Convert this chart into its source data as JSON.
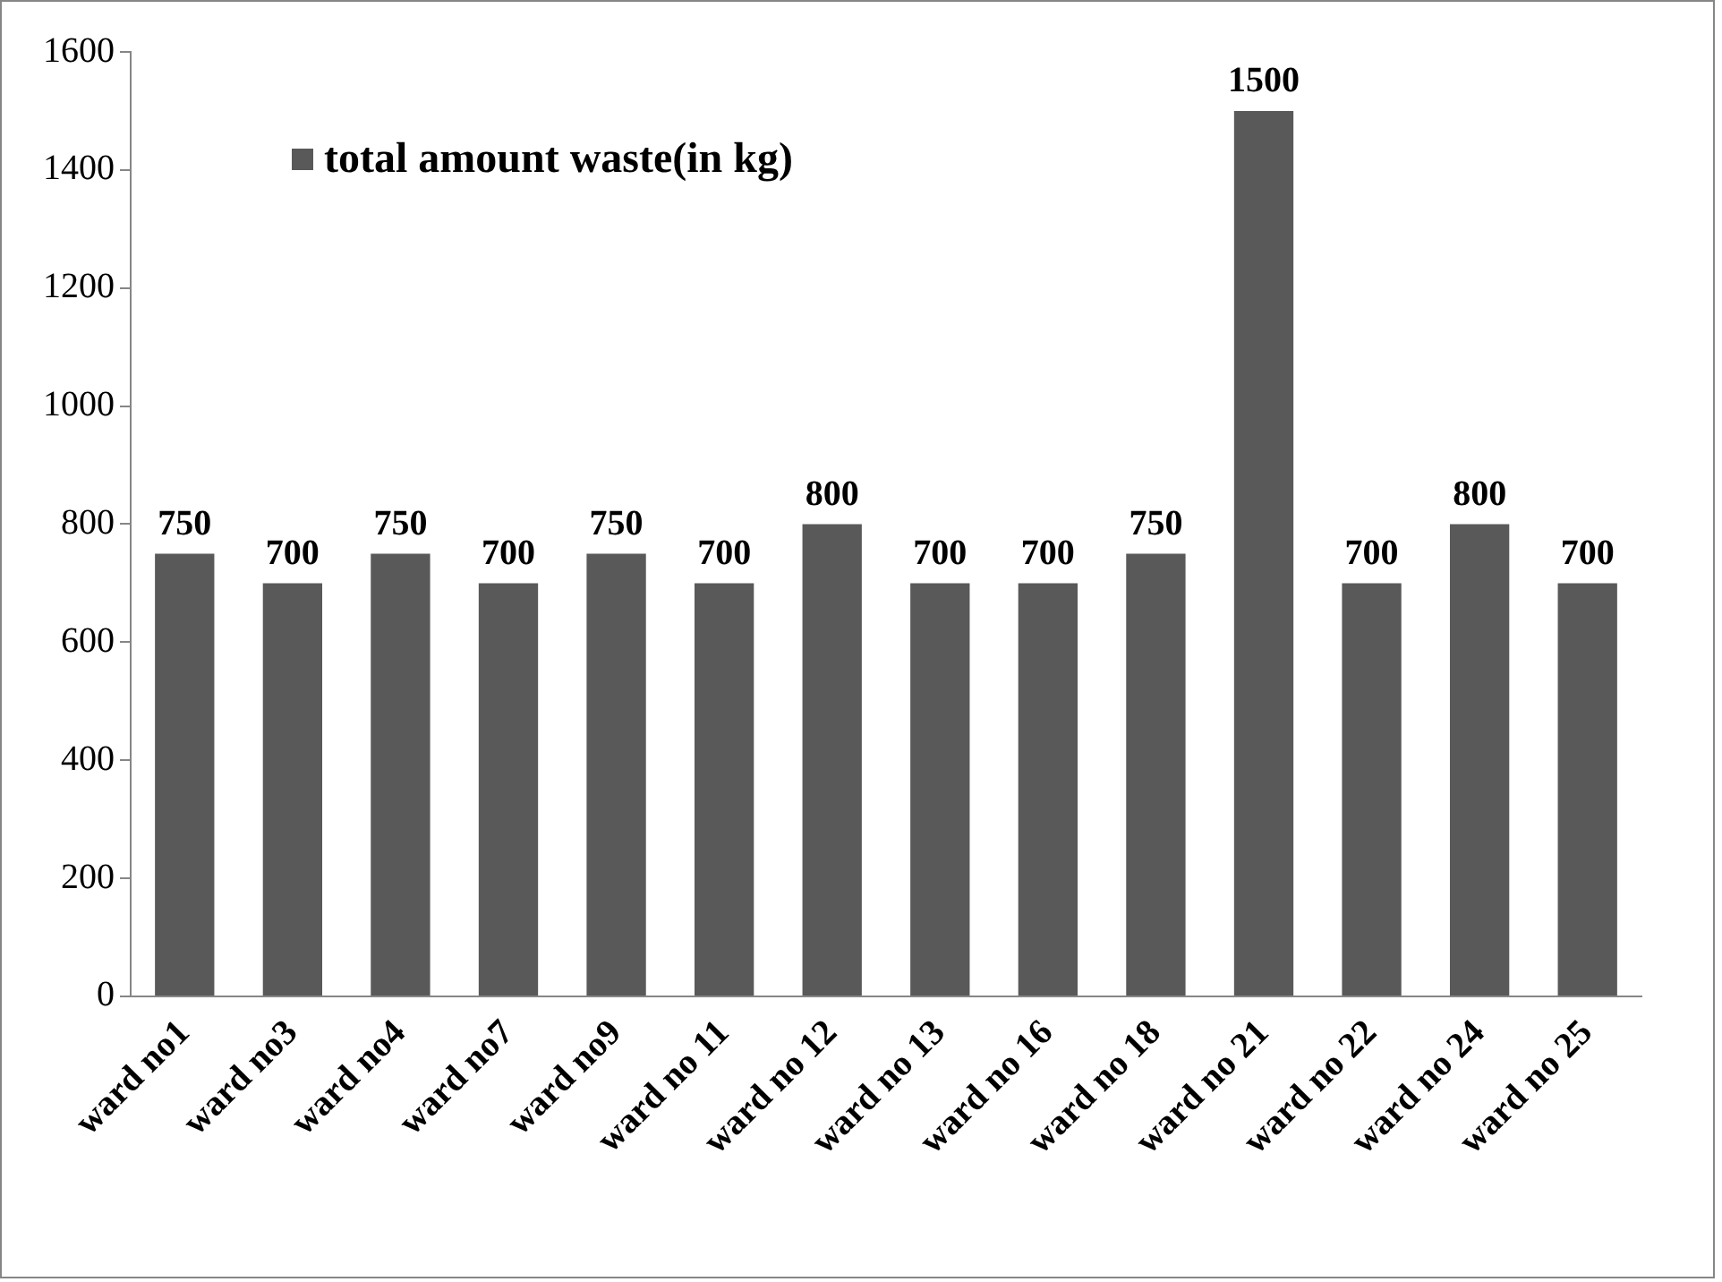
{
  "chart_data": {
    "type": "bar",
    "categories": [
      "ward no1",
      "ward no3",
      "ward no4",
      "ward no7",
      "ward no9",
      "ward no 11",
      "ward no 12",
      "ward no 13",
      "ward no 16",
      "ward no 18",
      "ward no 21",
      "ward no 22",
      "ward no 24",
      "ward no 25"
    ],
    "series": [
      {
        "name": "total amount waste(in kg)",
        "color": "#595959",
        "values": [
          750,
          700,
          750,
          700,
          750,
          700,
          800,
          700,
          700,
          750,
          1500,
          700,
          800,
          700
        ]
      }
    ],
    "ylim": [
      0,
      1600
    ],
    "yticks": [
      0,
      200,
      400,
      600,
      800,
      1000,
      1200,
      1400,
      1600
    ],
    "grid": false,
    "legend": "top left",
    "data_labels": true
  }
}
